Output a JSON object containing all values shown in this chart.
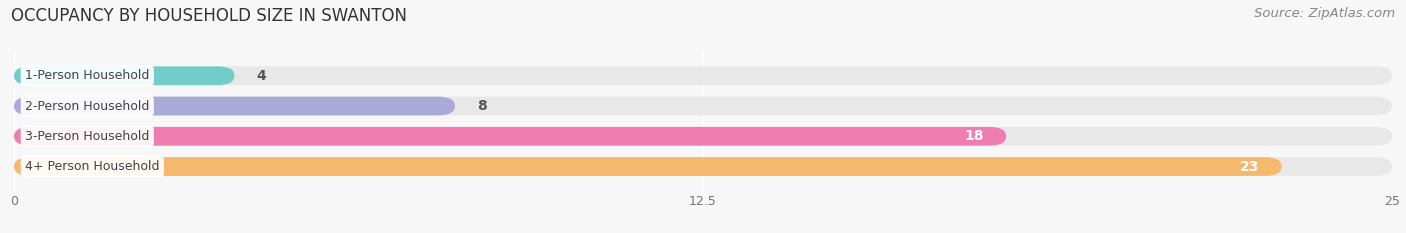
{
  "title": "OCCUPANCY BY HOUSEHOLD SIZE IN SWANTON",
  "source": "Source: ZipAtlas.com",
  "categories": [
    "1-Person Household",
    "2-Person Household",
    "3-Person Household",
    "4+ Person Household"
  ],
  "values": [
    4,
    8,
    18,
    23
  ],
  "bar_colors": [
    "#72cdc8",
    "#aaaad8",
    "#f07db0",
    "#f5b96e"
  ],
  "bar_track_color": "#e8e8e8",
  "label_inside": [
    false,
    false,
    true,
    true
  ],
  "xlim": [
    0,
    25
  ],
  "xticks": [
    0,
    12.5,
    25
  ],
  "title_fontsize": 12,
  "source_fontsize": 9.5,
  "value_fontsize": 10,
  "cat_fontsize": 9,
  "tick_fontsize": 9,
  "figsize": [
    14.06,
    2.33
  ],
  "dpi": 100,
  "bg_color": "#f7f7f7"
}
